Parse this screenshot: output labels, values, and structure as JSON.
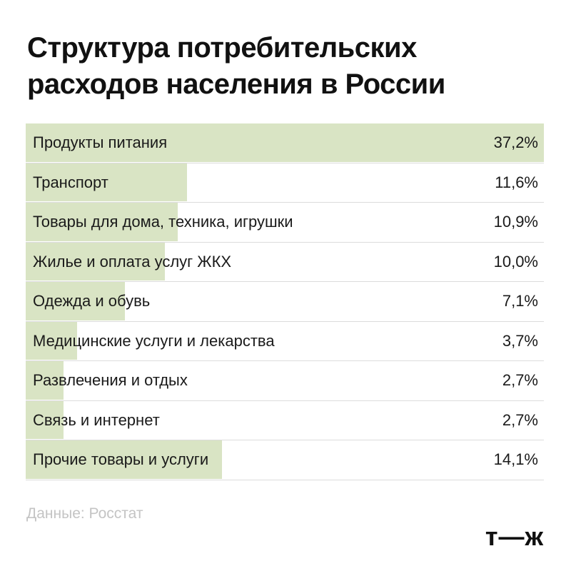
{
  "title_lines": [
    "Структура потребительских",
    "расходов населения в России"
  ],
  "source": "Данные: Росстат",
  "logo_text": "т—ж",
  "colors": {
    "bar": "#d9e4c4",
    "text": "#111111",
    "source": "#c4c4c4"
  },
  "chart_data": {
    "type": "bar",
    "orientation": "horizontal",
    "title": "Структура потребительских расходов населения в России",
    "categories": [
      "Продукты питания",
      "Транспорт",
      "Товары для дома, техника, игрушки",
      "Жилье и оплата услуг ЖКХ",
      "Одежда и обувь",
      "Медицинские услуги и лекарства",
      "Развлечения и отдых",
      "Связь и интернет",
      "Прочие товары и услуги"
    ],
    "values": [
      37.2,
      11.6,
      10.9,
      10.0,
      7.1,
      3.7,
      2.7,
      2.7,
      14.1
    ],
    "value_labels": [
      "37,2%",
      "11,6%",
      "10,9%",
      "10,0%",
      "7,1%",
      "3,7%",
      "2,7%",
      "2,7%",
      "14,1%"
    ],
    "unit": "%",
    "xlim": [
      0,
      37.2
    ],
    "grid": false,
    "legend": "none"
  }
}
